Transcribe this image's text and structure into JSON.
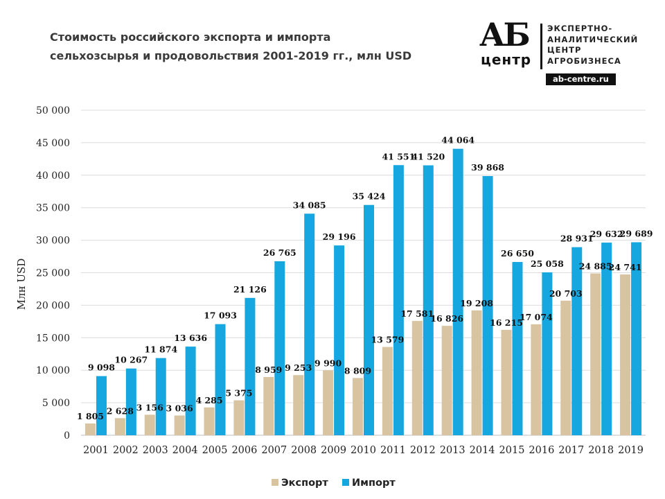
{
  "header": {
    "title": "Стоимость российского экспорта и импорта\nсельхозсырья  и продовольствия  2001-2019 гг., млн USD"
  },
  "logo": {
    "mark_top": "АБ",
    "mark_bottom": "центр",
    "text": "ЭКСПЕРТНО-\nАНАЛИТИЧЕСКИЙ\nЦЕНТР\nАГРОБИЗНЕСА",
    "site": "ab-centre.ru"
  },
  "chart_data": {
    "type": "bar",
    "ylabel": "Млн USD",
    "ylim": [
      0,
      50000
    ],
    "ytick_labels": [
      "0",
      "5 000",
      "10 000",
      "15 000",
      "20 000",
      "25 000",
      "30 000",
      "35 000",
      "40 000",
      "45 000",
      "50 000"
    ],
    "grid": true,
    "legend_position": "bottom",
    "categories": [
      "2001",
      "2002",
      "2003",
      "2004",
      "2005",
      "2006",
      "2007",
      "2008",
      "2009",
      "2010",
      "2011",
      "2012",
      "2013",
      "2014",
      "2015",
      "2016",
      "2017",
      "2018",
      "2019"
    ],
    "series": [
      {
        "name": "Экспорт",
        "color": "#d8c4a1",
        "values": [
          1805,
          2628,
          3156,
          3036,
          4285,
          5375,
          8959,
          9253,
          9990,
          8809,
          13579,
          17581,
          16826,
          19208,
          16215,
          17074,
          20703,
          24885,
          24741
        ],
        "labels": [
          "1 805",
          "2 628",
          "3 156",
          "3 036",
          "4 285",
          "5 375",
          "8 959",
          "9 253",
          "9 990",
          "8 809",
          "13 579",
          "17 581",
          "16 826",
          "19 208",
          "16 215",
          "17 074",
          "20 703",
          "24 885",
          "24 741"
        ]
      },
      {
        "name": "Импорт",
        "color": "#16a7e0",
        "values": [
          9098,
          10267,
          11874,
          13636,
          17093,
          21126,
          26765,
          34085,
          29196,
          35424,
          41551,
          41520,
          44064,
          39868,
          26650,
          25058,
          28931,
          29632,
          29689
        ],
        "labels": [
          "9 098",
          "10 267",
          "11 874",
          "13 636",
          "17 093",
          "21 126",
          "26 765",
          "34 085",
          "29 196",
          "35 424",
          "41 551",
          "41 520",
          "44 064",
          "39 868",
          "26 650",
          "25 058",
          "28 931",
          "29 632",
          "29 689"
        ]
      }
    ]
  }
}
